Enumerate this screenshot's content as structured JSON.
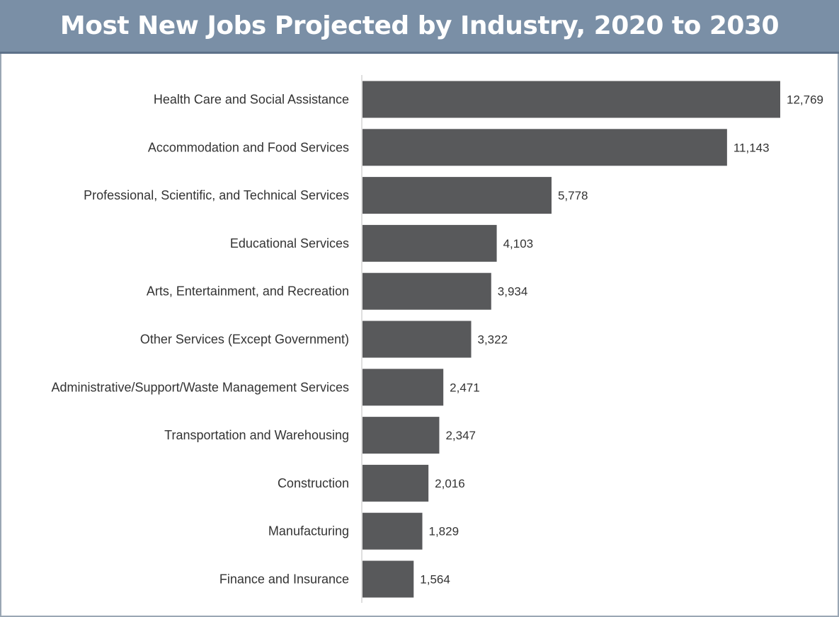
{
  "title": "Most New Jobs Projected by Industry, 2020 to 2030",
  "colors": {
    "header_bg": "#7a8fa6",
    "bar": "#58595b",
    "axis": "#bfbfbf",
    "text": "#333333"
  },
  "chart_data": {
    "type": "bar",
    "orientation": "horizontal",
    "title": "Most New Jobs Projected by Industry, 2020 to 2030",
    "xlabel": "",
    "ylabel": "",
    "grid": false,
    "legend": "none",
    "categories": [
      "Health Care and Social Assistance",
      "Accommodation and Food Services",
      "Professional, Scientific, and Technical Services",
      "Educational Services",
      "Arts, Entertainment, and Recreation",
      "Other Services (Except Government)",
      "Administrative/Support/Waste Management Services",
      "Transportation and Warehousing",
      "Construction",
      "Manufacturing",
      "Finance and Insurance"
    ],
    "values": [
      12769,
      11143,
      5778,
      4103,
      3934,
      3322,
      2471,
      2347,
      2016,
      1829,
      1564
    ],
    "value_labels": [
      "12,769",
      "11,143",
      "5,778",
      "4,103",
      "3,934",
      "3,322",
      "2,471",
      "2,347",
      "2,016",
      "1,829",
      "1,564"
    ],
    "xlim": [
      0,
      12769
    ]
  }
}
